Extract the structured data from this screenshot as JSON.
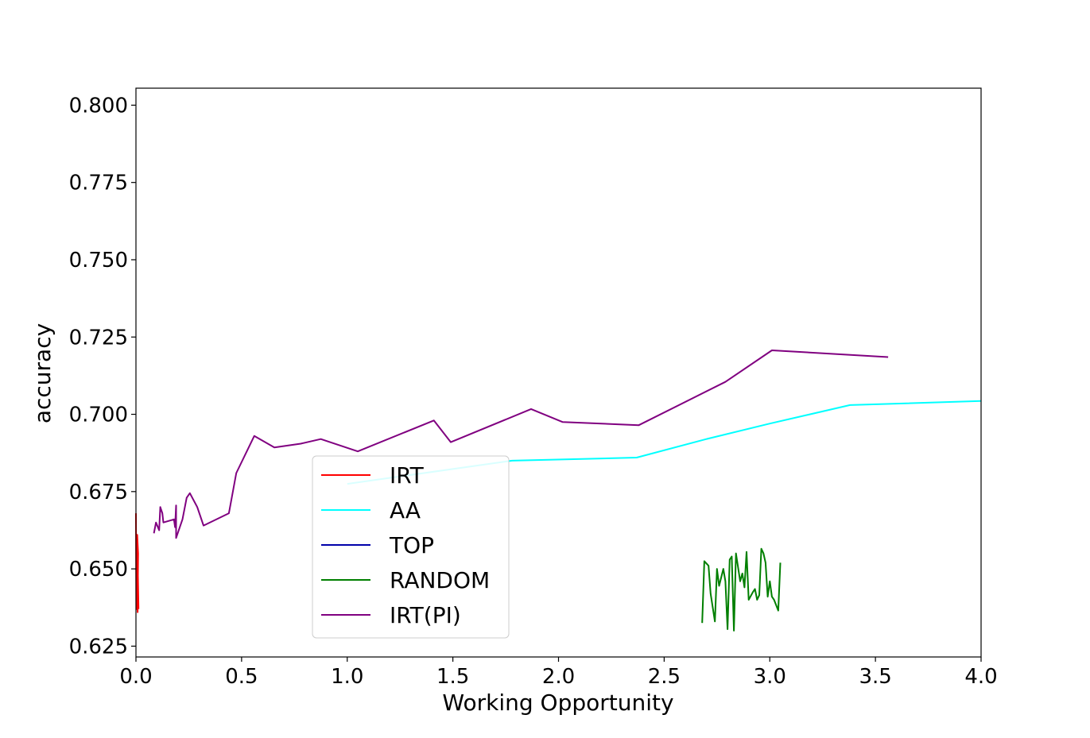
{
  "chart_data": {
    "type": "line",
    "title": "",
    "xlabel": "Working Opportunity",
    "ylabel": "accuracy",
    "xlim": [
      0.0,
      4.0
    ],
    "ylim": [
      0.6215,
      0.8055
    ],
    "xticks": [
      "0.0",
      "0.5",
      "1.0",
      "1.5",
      "2.0",
      "2.5",
      "3.0",
      "3.5",
      "4.0"
    ],
    "yticks": [
      "0.625",
      "0.650",
      "0.675",
      "0.700",
      "0.725",
      "0.750",
      "0.775",
      "0.800"
    ],
    "grid": false,
    "legend_position": "lower-left-center",
    "series": [
      {
        "name": "IRT",
        "color": "#ff0000",
        "x": [
          0.0,
          0.002,
          0.004,
          0.006,
          0.008,
          0.01,
          0.006,
          0.012
        ],
        "y": [
          0.668,
          0.637,
          0.66,
          0.645,
          0.636,
          0.655,
          0.661,
          0.637
        ]
      },
      {
        "name": "AA",
        "color": "#00ffff",
        "x": [
          1.0,
          1.78,
          2.37,
          2.7,
          3.0,
          3.38,
          4.0
        ],
        "y": [
          0.6775,
          0.685,
          0.686,
          0.692,
          0.697,
          0.703,
          0.7043
        ]
      },
      {
        "name": "TOP",
        "color": "#0000aa",
        "x": [],
        "y": []
      },
      {
        "name": "RANDOM",
        "color": "#007f00",
        "x": [
          2.68,
          2.69,
          2.71,
          2.72,
          2.74,
          2.75,
          2.76,
          2.78,
          2.79,
          2.8,
          2.81,
          2.82,
          2.83,
          2.84,
          2.86,
          2.87,
          2.88,
          2.89,
          2.9,
          2.92,
          2.93,
          2.94,
          2.95,
          2.96,
          2.97,
          2.98,
          2.99,
          3.0,
          3.01,
          3.02,
          3.04,
          3.05
        ],
        "y": [
          0.6325,
          0.6525,
          0.651,
          0.642,
          0.633,
          0.65,
          0.6445,
          0.65,
          0.646,
          0.6305,
          0.653,
          0.654,
          0.63,
          0.655,
          0.646,
          0.6485,
          0.644,
          0.6555,
          0.64,
          0.6425,
          0.6435,
          0.64,
          0.6415,
          0.6565,
          0.655,
          0.652,
          0.641,
          0.646,
          0.641,
          0.64,
          0.6365,
          0.652
        ]
      },
      {
        "name": "IRT(PI)",
        "color": "#800080",
        "x": [
          0.085,
          0.095,
          0.11,
          0.115,
          0.125,
          0.13,
          0.18,
          0.185,
          0.19,
          0.19,
          0.22,
          0.24,
          0.255,
          0.29,
          0.32,
          0.44,
          0.475,
          0.56,
          0.655,
          0.78,
          0.875,
          1.05,
          1.41,
          1.49,
          1.87,
          2.02,
          2.38,
          2.79,
          3.01,
          3.56
        ],
        "y": [
          0.6615,
          0.665,
          0.6625,
          0.67,
          0.668,
          0.665,
          0.666,
          0.6635,
          0.6705,
          0.66,
          0.666,
          0.673,
          0.6745,
          0.67,
          0.664,
          0.668,
          0.681,
          0.693,
          0.6893,
          0.6905,
          0.692,
          0.688,
          0.698,
          0.691,
          0.7017,
          0.6975,
          0.6965,
          0.7105,
          0.7207,
          0.7185
        ]
      }
    ]
  }
}
